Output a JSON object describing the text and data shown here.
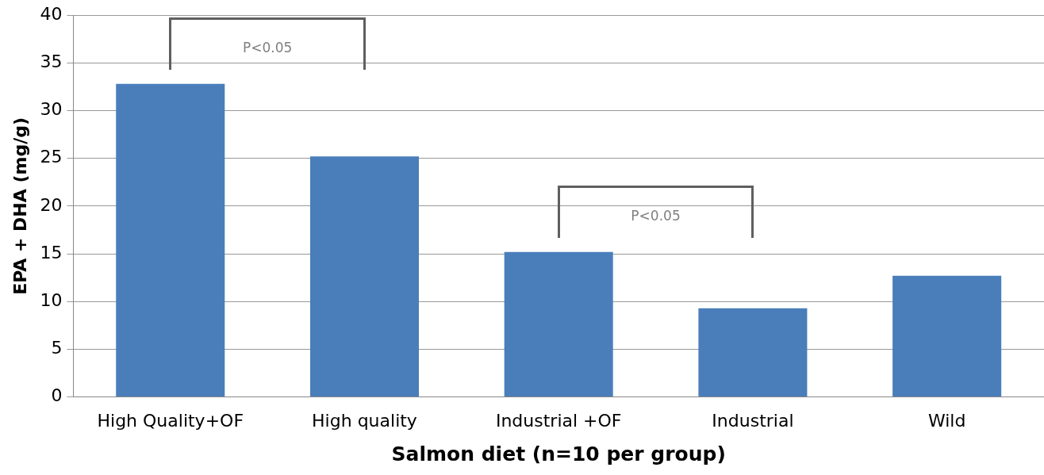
{
  "chart_data": {
    "type": "bar",
    "xlabel": "Salmon diet (n=10 per group)",
    "ylabel": "EPA + DHA (mg/g)",
    "categories": [
      "High Quality+OF",
      "High quality",
      "Industrial +OF",
      "Industrial",
      "Wild"
    ],
    "values": [
      32.8,
      25.2,
      15.2,
      9.3,
      12.7
    ],
    "color": "#4a7ebb",
    "ylim": [
      0,
      40
    ],
    "yticks": [
      0,
      5,
      10,
      15,
      20,
      25,
      30,
      35,
      40
    ],
    "grid": "y",
    "legend": false,
    "annotations": [
      "P<0.05",
      "P<0.05"
    ]
  }
}
